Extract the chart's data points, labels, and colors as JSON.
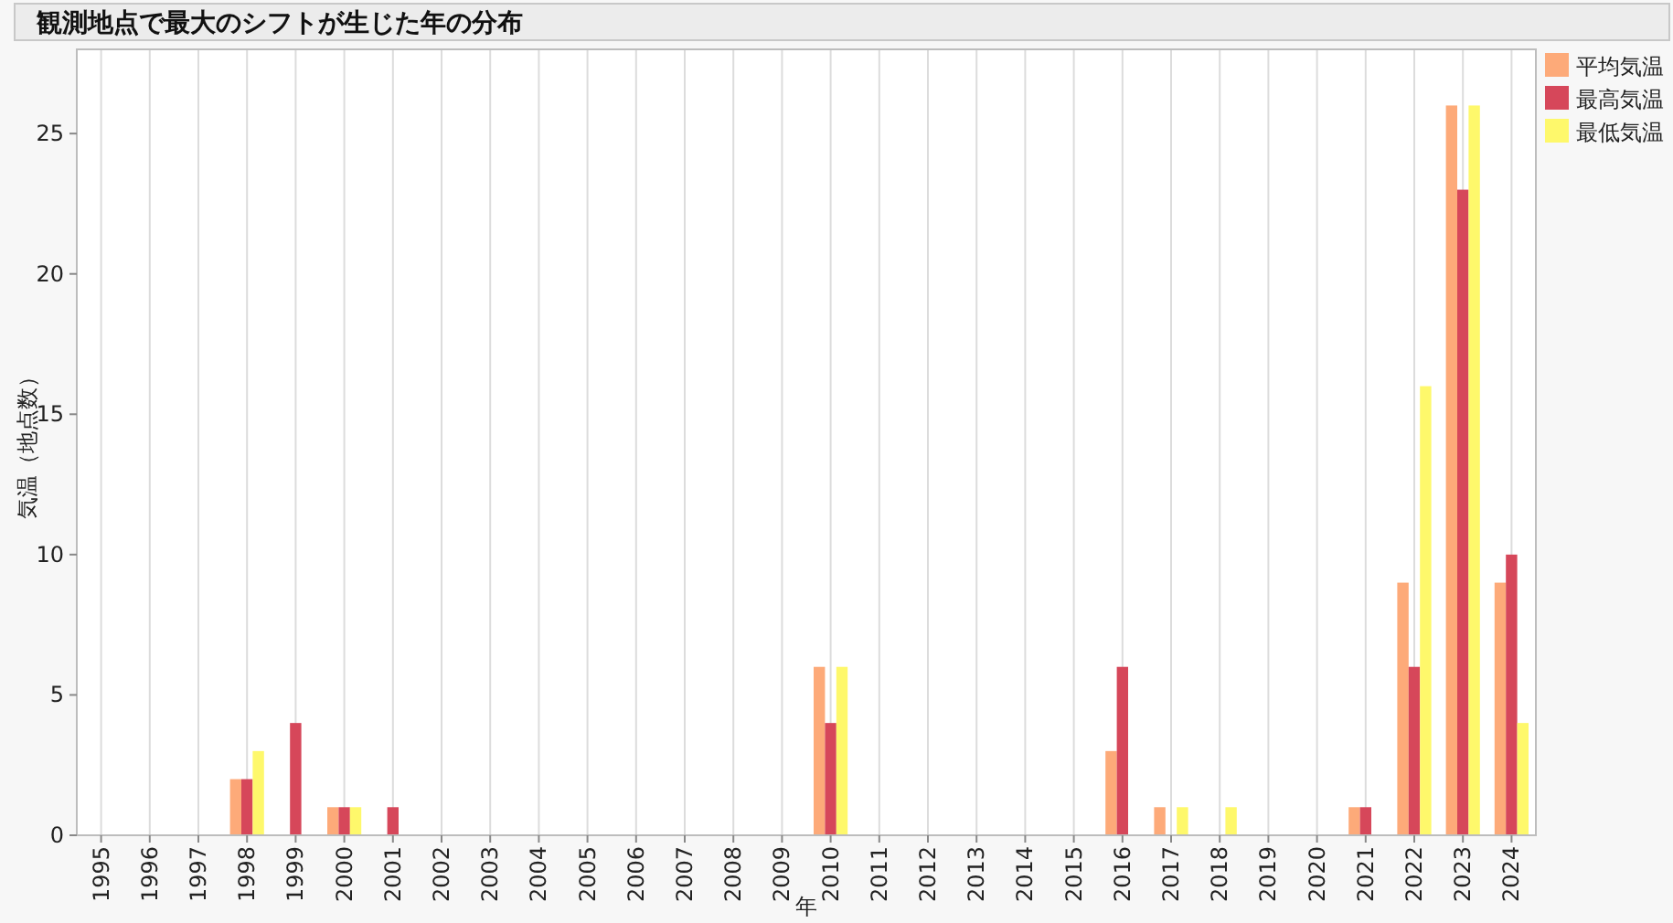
{
  "chart_data": {
    "type": "bar",
    "title": "観測地点で最大のシフトが生じた年の分布",
    "xlabel": "年",
    "ylabel": "気温（地点数）",
    "categories": [
      "1995",
      "1996",
      "1997",
      "1998",
      "1999",
      "2000",
      "2001",
      "2002",
      "2003",
      "2004",
      "2005",
      "2006",
      "2007",
      "2008",
      "2009",
      "2010",
      "2011",
      "2012",
      "2013",
      "2014",
      "2015",
      "2016",
      "2017",
      "2018",
      "2019",
      "2020",
      "2021",
      "2022",
      "2023",
      "2024"
    ],
    "series": [
      {
        "name": "平均気温",
        "color": "#fdaa79",
        "values": [
          0,
          0,
          0,
          2,
          0,
          1,
          0,
          0,
          0,
          0,
          0,
          0,
          0,
          0,
          0,
          6,
          0,
          0,
          0,
          0,
          0,
          3,
          1,
          0,
          0,
          0,
          1,
          9,
          26,
          9
        ]
      },
      {
        "name": "最高気温",
        "color": "#d6475a",
        "values": [
          0,
          0,
          0,
          2,
          4,
          1,
          1,
          0,
          0,
          0,
          0,
          0,
          0,
          0,
          0,
          4,
          0,
          0,
          0,
          0,
          0,
          6,
          0,
          0,
          0,
          0,
          1,
          6,
          23,
          10
        ]
      },
      {
        "name": "最低気温",
        "color": "#fef86b",
        "values": [
          0,
          0,
          0,
          3,
          0,
          1,
          0,
          0,
          0,
          0,
          0,
          0,
          0,
          0,
          0,
          6,
          0,
          0,
          0,
          0,
          0,
          0,
          1,
          1,
          0,
          0,
          0,
          16,
          26,
          4
        ]
      }
    ],
    "ylim": [
      0,
      28
    ],
    "yticks": [
      0,
      5,
      10,
      15,
      20,
      25
    ],
    "grid": "x",
    "legend": "top right"
  }
}
